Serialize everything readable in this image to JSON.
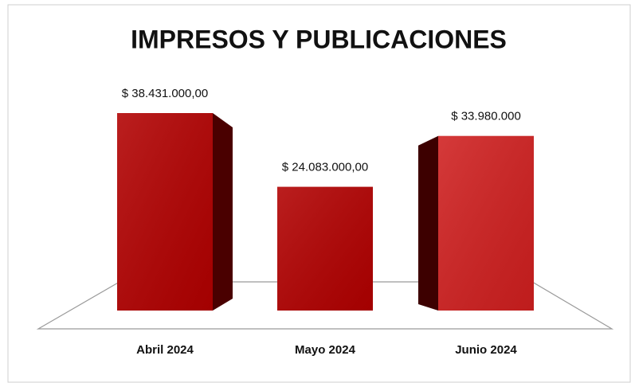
{
  "chart_data": {
    "type": "bar3d",
    "title": "IMPRESOS Y PUBLICACIONES",
    "categories": [
      "Abril 2024",
      "Mayo 2024",
      "Junio 2024"
    ],
    "values": [
      38431000,
      24083000,
      33980000
    ],
    "value_labels": [
      "$ 38.431.000,00",
      "$ 24.083.000,00",
      "$ 33.980.000"
    ],
    "colors": [
      "#b10000",
      "#b10000",
      "#cf1f1f"
    ]
  }
}
